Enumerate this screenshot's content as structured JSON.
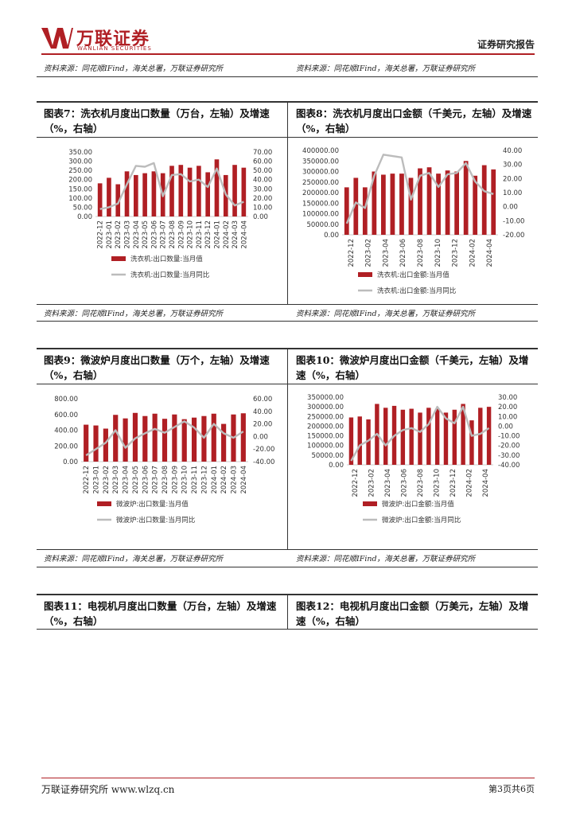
{
  "header": {
    "logo_cn": "万联证券",
    "logo_en": "WANLIAN SECURITIES",
    "doc_type": "证券研究报告"
  },
  "source_note": "资料来源：同花顺IFind，海关总署，万联证券研究所",
  "footer": {
    "company": "万联证券研究所 www.wlzq.cn",
    "page": "第3页共6页"
  },
  "colors": {
    "bar": "#b01f24",
    "line": "#bcbcbc",
    "brand": "#b01f24"
  },
  "charts": [
    {
      "title": "图表7：洗衣机月度出口数量（万台，左轴）及增速（%，右轴）",
      "legend_bar": "洗衣机:出口数量:当月值",
      "legend_line": "洗衣机:出口数量:当月同比",
      "left_ticks": [
        "350.00",
        "300.00",
        "250.00",
        "200.00",
        "150.00",
        "100.00",
        "50.00",
        "0.00"
      ],
      "right_ticks": [
        "70.00",
        "60.00",
        "50.00",
        "40.00",
        "30.00",
        "20.00",
        "10.00",
        "0.00"
      ],
      "x_labels": [
        "2022-12",
        "2023-01",
        "2023-02",
        "2023-03",
        "2023-04",
        "2023-05",
        "2023-06",
        "2023-07",
        "2023-08",
        "2023-09",
        "2023-10",
        "2023-11",
        "2023-12",
        "2024-01",
        "2024-02",
        "2024-03",
        "2024-04"
      ]
    },
    {
      "title": "图表8：洗衣机月度出口金额（千美元，左轴）及增速（%，右轴）",
      "legend_bar": "洗衣机:出口金额:当月值",
      "legend_line": "洗衣机:出口金额:当月同比",
      "left_ticks": [
        "400000.00",
        "350000.00",
        "300000.00",
        "250000.00",
        "200000.00",
        "150000.00",
        "100000.00",
        "50000.00",
        "0.00"
      ],
      "right_ticks": [
        "40.00",
        "30.00",
        "20.00",
        "10.00",
        "0.00",
        "-10.00",
        "-20.00"
      ],
      "x_labels": [
        "2022-12",
        "2023-02",
        "2023-04",
        "2023-06",
        "2023-08",
        "2023-10",
        "2023-12",
        "2024-02",
        "2024-04"
      ]
    },
    {
      "title": "图表9：微波炉月度出口数量（万个，左轴）及增速（%，右轴）",
      "legend_bar": "微波炉:出口数量:当月值",
      "legend_line": "微波炉:出口数量:当月同比",
      "left_ticks": [
        "800.00",
        "600.00",
        "400.00",
        "200.00",
        "0.00"
      ],
      "right_ticks": [
        "60.00",
        "40.00",
        "20.00",
        "0.00",
        "-20.00",
        "-40.00"
      ],
      "x_labels": [
        "2022-12",
        "2023-01",
        "2023-02",
        "2023-03",
        "2023-04",
        "2023-05",
        "2023-06",
        "2023-07",
        "2023-08",
        "2023-09",
        "2023-10",
        "2023-11",
        "2023-12",
        "2024-01",
        "2024-02",
        "2024-03",
        "2024-04"
      ]
    },
    {
      "title": "图表10：微波炉月度出口金额（千美元，左轴）及增速（%，右轴）",
      "legend_bar": "微波炉:出口金额:当月值",
      "legend_line": "微波炉:出口金额:当月同比",
      "left_ticks": [
        "350000.00",
        "300000.00",
        "250000.00",
        "200000.00",
        "150000.00",
        "100000.00",
        "50000.00",
        "0.00"
      ],
      "right_ticks": [
        "30.00",
        "20.00",
        "10.00",
        "0.00",
        "-10.00",
        "-20.00",
        "-30.00",
        "-40.00"
      ],
      "x_labels": [
        "2022-12",
        "2023-02",
        "2023-04",
        "2023-06",
        "2023-08",
        "2023-10",
        "2023-12",
        "2024-02",
        "2024-04"
      ]
    }
  ],
  "titles_bottom": [
    "图表11：电视机月度出口数量（万台，左轴）及增速（%，右轴）",
    "图表12：电视机月度出口金额（万美元，左轴）及增速（%，右轴）"
  ],
  "chart_data": [
    {
      "type": "bar",
      "title": "图表7：洗衣机月度出口数量（万台，左轴）及增速（%，右轴）",
      "categories": [
        "2022-12",
        "2023-01",
        "2023-02",
        "2023-03",
        "2023-04",
        "2023-05",
        "2023-06",
        "2023-07",
        "2023-08",
        "2023-09",
        "2023-10",
        "2023-11",
        "2023-12",
        "2024-01",
        "2024-02",
        "2024-03",
        "2024-04"
      ],
      "series": [
        {
          "name": "洗衣机:出口数量:当月值",
          "axis": "left",
          "kind": "bar",
          "values": [
            180,
            210,
            175,
            245,
            225,
            235,
            245,
            235,
            275,
            280,
            265,
            275,
            240,
            310,
            225,
            280,
            265
          ]
        },
        {
          "name": "洗衣机:出口数量:当月同比",
          "axis": "right",
          "kind": "line",
          "values": [
            8,
            10,
            14,
            35,
            55,
            54,
            58,
            22,
            45,
            46,
            38,
            40,
            32,
            52,
            24,
            12,
            16
          ]
        }
      ],
      "ylim_left": [
        0,
        350
      ],
      "ylim_right": [
        0,
        70
      ]
    },
    {
      "type": "bar",
      "title": "图表8：洗衣机月度出口金额（千美元，左轴）及增速（%，右轴）",
      "categories": [
        "2022-12",
        "2023-01",
        "2023-02",
        "2023-03",
        "2023-04",
        "2023-05",
        "2023-06",
        "2023-07",
        "2023-08",
        "2023-09",
        "2023-10",
        "2023-11",
        "2023-12",
        "2024-01",
        "2024-02",
        "2024-03",
        "2024-04"
      ],
      "series": [
        {
          "name": "洗衣机:出口金额:当月值",
          "axis": "left",
          "kind": "bar",
          "values": [
            225000,
            270000,
            225000,
            300000,
            285000,
            290000,
            290000,
            270000,
            315000,
            320000,
            290000,
            305000,
            300000,
            350000,
            280000,
            330000,
            310000
          ]
        },
        {
          "name": "洗衣机:出口金额:当月同比",
          "axis": "right",
          "kind": "line",
          "values": [
            -12,
            3,
            -1,
            22,
            37,
            36,
            35,
            5,
            22,
            24,
            14,
            23,
            24,
            31,
            18,
            11,
            9
          ]
        }
      ],
      "ylim_left": [
        0,
        400000
      ],
      "ylim_right": [
        -20,
        40
      ]
    },
    {
      "type": "bar",
      "title": "图表9：微波炉月度出口数量（万个，左轴）及增速（%，右轴）",
      "categories": [
        "2022-12",
        "2023-01",
        "2023-02",
        "2023-03",
        "2023-04",
        "2023-05",
        "2023-06",
        "2023-07",
        "2023-08",
        "2023-09",
        "2023-10",
        "2023-11",
        "2023-12",
        "2024-01",
        "2024-02",
        "2024-03",
        "2024-04"
      ],
      "series": [
        {
          "name": "微波炉:出口数量:当月值",
          "axis": "left",
          "kind": "bar",
          "values": [
            470,
            460,
            420,
            595,
            550,
            620,
            580,
            610,
            545,
            600,
            540,
            560,
            580,
            610,
            480,
            600,
            615
          ]
        },
        {
          "name": "微波炉:出口数量:当月同比",
          "axis": "right",
          "kind": "line",
          "values": [
            -30,
            -20,
            -10,
            10,
            -18,
            -3,
            5,
            12,
            6,
            15,
            24,
            14,
            -2,
            20,
            5,
            -2,
            8
          ]
        }
      ],
      "ylim_left": [
        0,
        800
      ],
      "ylim_right": [
        -40,
        60
      ]
    },
    {
      "type": "bar",
      "title": "图表10：微波炉月度出口金额（千美元，左轴）及增速（%，右轴）",
      "categories": [
        "2022-12",
        "2023-01",
        "2023-02",
        "2023-03",
        "2023-04",
        "2023-05",
        "2023-06",
        "2023-07",
        "2023-08",
        "2023-09",
        "2023-10",
        "2023-11",
        "2023-12",
        "2024-01",
        "2024-02",
        "2024-03",
        "2024-04"
      ],
      "series": [
        {
          "name": "微波炉:出口金额:当月值",
          "axis": "left",
          "kind": "bar",
          "values": [
            245000,
            250000,
            235000,
            315000,
            295000,
            305000,
            285000,
            290000,
            270000,
            295000,
            290000,
            270000,
            285000,
            315000,
            230000,
            295000,
            300000
          ]
        },
        {
          "name": "微波炉:出口金额:当月同比",
          "axis": "right",
          "kind": "line",
          "values": [
            -36,
            -20,
            -15,
            -8,
            -20,
            -10,
            -4,
            -2,
            -6,
            2,
            20,
            8,
            3,
            20,
            -10,
            -8,
            -2
          ]
        }
      ],
      "ylim_left": [
        0,
        350000
      ],
      "ylim_right": [
        -40,
        30
      ]
    }
  ]
}
